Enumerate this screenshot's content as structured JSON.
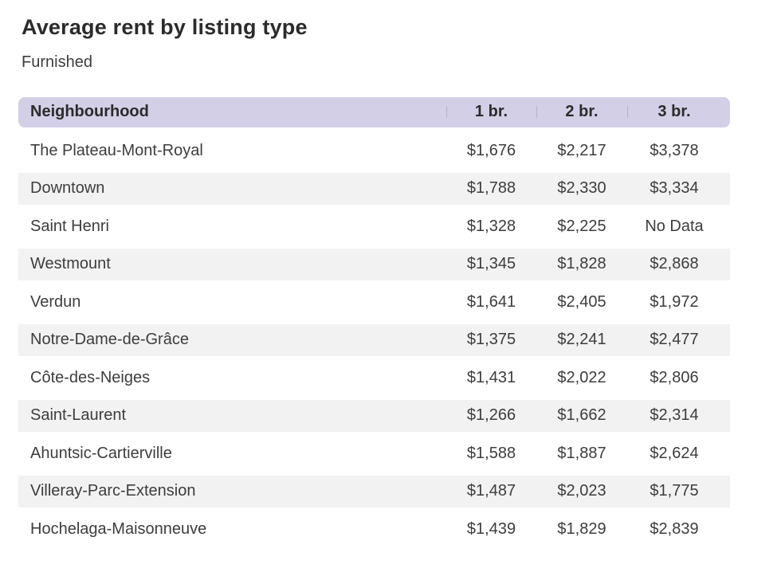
{
  "title": "Average rent by listing type",
  "subtitle": "Furnished",
  "colors": {
    "header_bg": "#d3cfe7",
    "header_divider": "#b6afd3",
    "stripe_bg": "#f2f2f2",
    "text": "#3d3d3d",
    "heading_text": "#2b2b2b"
  },
  "chart_data": {
    "type": "table",
    "title": "Average rent by listing type",
    "subtitle": "Furnished",
    "columns": [
      "Neighbourhood",
      "1 br.",
      "2 br.",
      "3 br."
    ],
    "rows": [
      {
        "name": "The Plateau-Mont-Royal",
        "values": [
          "$1,676",
          "$2,217",
          "$3,378"
        ]
      },
      {
        "name": "Downtown",
        "values": [
          "$1,788",
          "$2,330",
          "$3,334"
        ]
      },
      {
        "name": "Saint Henri",
        "values": [
          "$1,328",
          "$2,225",
          "No Data"
        ]
      },
      {
        "name": "Westmount",
        "values": [
          "$1,345",
          "$1,828",
          "$2,868"
        ]
      },
      {
        "name": "Verdun",
        "values": [
          "$1,641",
          "$2,405",
          "$1,972"
        ]
      },
      {
        "name": "Notre-Dame-de-Grâce",
        "values": [
          "$1,375",
          "$2,241",
          "$2,477"
        ]
      },
      {
        "name": "Côte-des-Neiges",
        "values": [
          "$1,431",
          "$2,022",
          "$2,806"
        ]
      },
      {
        "name": "Saint-Laurent",
        "values": [
          "$1,266",
          "$1,662",
          "$2,314"
        ]
      },
      {
        "name": "Ahuntsic-Cartierville",
        "values": [
          "$1,588",
          "$1,887",
          "$2,624"
        ]
      },
      {
        "name": "Villeray-Parc-Extension",
        "values": [
          "$1,487",
          "$2,023",
          "$1,775"
        ]
      },
      {
        "name": "Hochelaga-Maisonneuve",
        "values": [
          "$1,439",
          "$1,829",
          "$2,839"
        ]
      }
    ]
  }
}
